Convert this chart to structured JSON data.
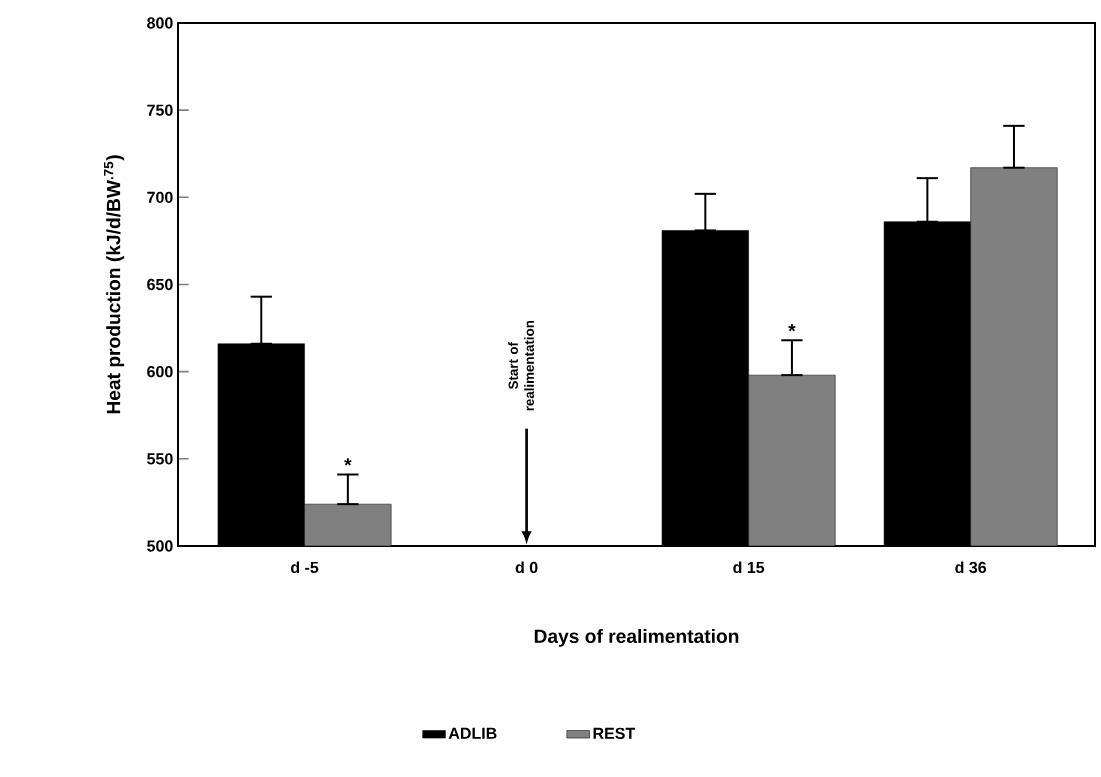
{
  "chart_data": {
    "type": "bar",
    "xlabel": "Days of realimentation",
    "ylabel": "Heat production (kJ/d/BW$^{.75}$)",
    "categories": [
      "d -5",
      "d 0",
      "d 15",
      "d 36"
    ],
    "series": [
      {
        "name": "ADLIB",
        "color": "#000000",
        "values": [
          616,
          null,
          681,
          686
        ],
        "errors": [
          [
            616,
            643
          ],
          null,
          [
            681,
            702
          ],
          [
            686,
            711
          ]
        ]
      },
      {
        "name": "REST",
        "color": "#808080",
        "values": [
          524,
          null,
          598,
          717
        ],
        "errors": [
          [
            524,
            541
          ],
          null,
          [
            598,
            618
          ],
          [
            717,
            741
          ]
        ]
      }
    ],
    "ylim": [
      500,
      800
    ],
    "yticks": [
      500,
      550,
      600,
      650,
      700,
      750,
      800
    ],
    "legend": "bottom",
    "annotations": [
      {
        "text": "*",
        "x": "d -5",
        "y": 541
      },
      {
        "text": "*",
        "x": "d 15",
        "y": 618
      },
      "Start of realimentation"
    ]
  }
}
